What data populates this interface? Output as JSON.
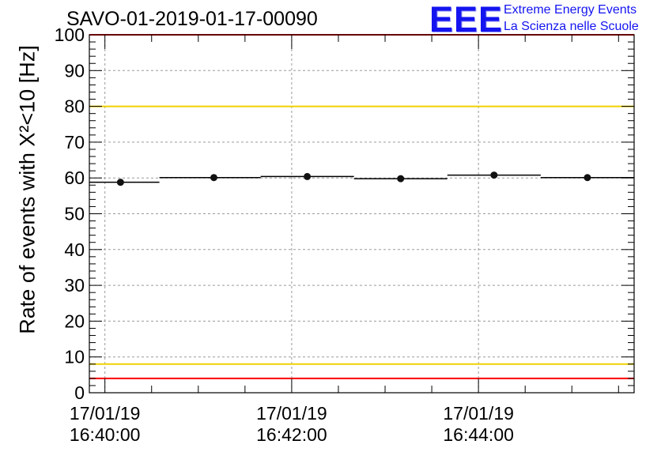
{
  "header": {
    "title": "SAVO-01-2019-01-17-00090",
    "logo_text": "EEE",
    "logo_line1": "Extreme Energy Events",
    "logo_line2": "La Scienza nelle Scuole",
    "logo_color": "#1414f0"
  },
  "chart_data": {
    "type": "scatter",
    "title": "SAVO-01-2019-01-17-00090",
    "ylabel": "Rate of events with X²<10 [Hz]",
    "xlabel": "",
    "ylim": [
      0,
      100
    ],
    "yticks": [
      0,
      10,
      20,
      30,
      40,
      50,
      60,
      70,
      80,
      90,
      100
    ],
    "xlim": [
      "16:39:50",
      "16:45:40"
    ],
    "xticks": [
      {
        "date": "17/01/19",
        "time": "16:40:00"
      },
      {
        "date": "17/01/19",
        "time": "16:42:00"
      },
      {
        "date": "17/01/19",
        "time": "16:44:00"
      }
    ],
    "grid": true,
    "series": [
      {
        "points": [
          {
            "x": "16:40:10",
            "x_start": "16:39:50",
            "x_end": "16:40:35",
            "y": 58.8
          },
          {
            "x": "16:41:10",
            "x_start": "16:40:35",
            "x_end": "16:41:40",
            "y": 60.1
          },
          {
            "x": "16:42:10",
            "x_start": "16:41:40",
            "x_end": "16:42:40",
            "y": 60.4
          },
          {
            "x": "16:43:10",
            "x_start": "16:42:40",
            "x_end": "16:43:40",
            "y": 59.8
          },
          {
            "x": "16:44:10",
            "x_start": "16:43:40",
            "x_end": "16:44:40",
            "y": 60.8
          },
          {
            "x": "16:45:10",
            "x_start": "16:44:40",
            "x_end": "16:45:40",
            "y": 60.1
          }
        ]
      }
    ],
    "reference_lines": [
      {
        "y": 100,
        "color": "#ff0000"
      },
      {
        "y": 80,
        "color": "#f0d000"
      },
      {
        "y": 8,
        "color": "#f0d000"
      },
      {
        "y": 4,
        "color": "#ff0000"
      }
    ]
  }
}
